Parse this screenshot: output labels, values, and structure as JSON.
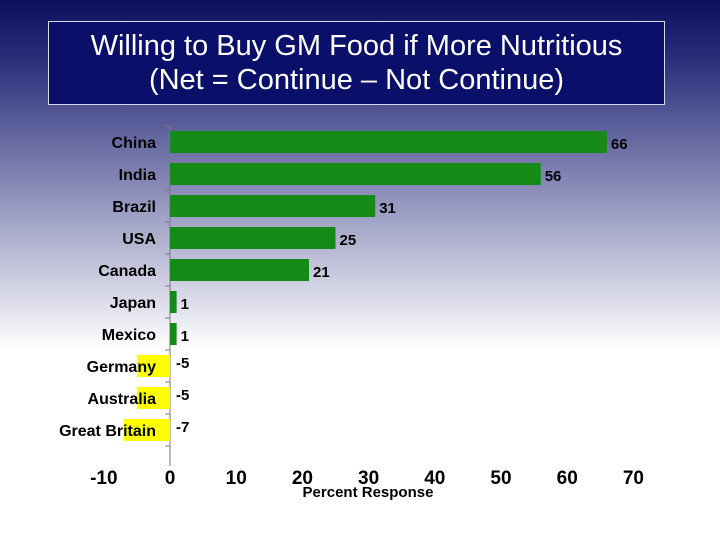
{
  "chart_data": {
    "type": "bar",
    "orientation": "horizontal",
    "title_lines": [
      "Willing to Buy GM Food if More Nutritious",
      "(Net = Continue – Not Continue)"
    ],
    "categories": [
      "China",
      "India",
      "Brazil",
      "USA",
      "Canada",
      "Japan",
      "Mexico",
      "Germany",
      "Australia",
      "Great Britain"
    ],
    "values": [
      66,
      56,
      31,
      25,
      21,
      1,
      1,
      -5,
      -5,
      -7
    ],
    "value_labels": [
      "66",
      "56",
      "31",
      "25",
      "21",
      "1",
      "1",
      "-5",
      "-5",
      "-7"
    ],
    "xlabel": "Percent Response",
    "ylabel": "",
    "xlim": [
      -10,
      70
    ],
    "xticks": [
      -10,
      0,
      10,
      20,
      30,
      40,
      50,
      60,
      70
    ],
    "grid": false,
    "colors": {
      "positive": "#168a16",
      "negative": "#ffff00"
    }
  }
}
